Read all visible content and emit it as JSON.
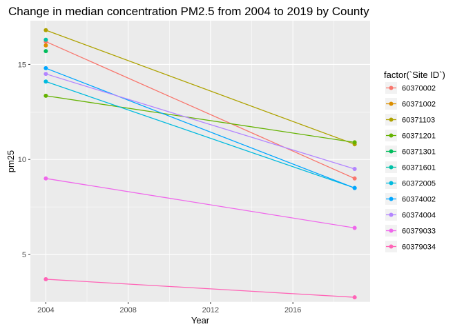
{
  "chart_data": {
    "type": "line",
    "title": "Change in median concentration PM2.5 from 2004 to 2019 by County",
    "xlabel": "Year",
    "ylabel": "pm25",
    "xlim": [
      2004,
      2019
    ],
    "ylim": [
      2.5,
      17.3
    ],
    "x_ticks": [
      2004,
      2008,
      2012,
      2016
    ],
    "y_ticks": [
      5,
      10,
      15
    ],
    "grid": true,
    "legend_title": "factor(`Site ID`)",
    "legend_position": "right",
    "x": [
      2004,
      2019
    ],
    "series": [
      {
        "name": "60370002",
        "color": "#F8766D",
        "values": [
          16.2,
          9.0
        ]
      },
      {
        "name": "60371002",
        "color": "#DB8E00",
        "values": [
          16.0,
          null
        ]
      },
      {
        "name": "60371103",
        "color": "#AEA200",
        "values": [
          16.8,
          10.8
        ]
      },
      {
        "name": "60371201",
        "color": "#64B200",
        "values": [
          13.35,
          10.9
        ]
      },
      {
        "name": "60371301",
        "color": "#00BD5C",
        "values": [
          15.7,
          null
        ]
      },
      {
        "name": "60371601",
        "color": "#00C1A7",
        "values": [
          16.3,
          null
        ]
      },
      {
        "name": "60372005",
        "color": "#00BADE",
        "values": [
          14.1,
          8.5
        ]
      },
      {
        "name": "60374002",
        "color": "#00A6FF",
        "values": [
          14.8,
          8.5
        ]
      },
      {
        "name": "60374004",
        "color": "#B385FF",
        "values": [
          14.5,
          9.5
        ]
      },
      {
        "name": "60379033",
        "color": "#EF67EB",
        "values": [
          9.0,
          6.4
        ]
      },
      {
        "name": "60379034",
        "color": "#FF63B6",
        "values": [
          3.7,
          2.75
        ]
      }
    ]
  }
}
